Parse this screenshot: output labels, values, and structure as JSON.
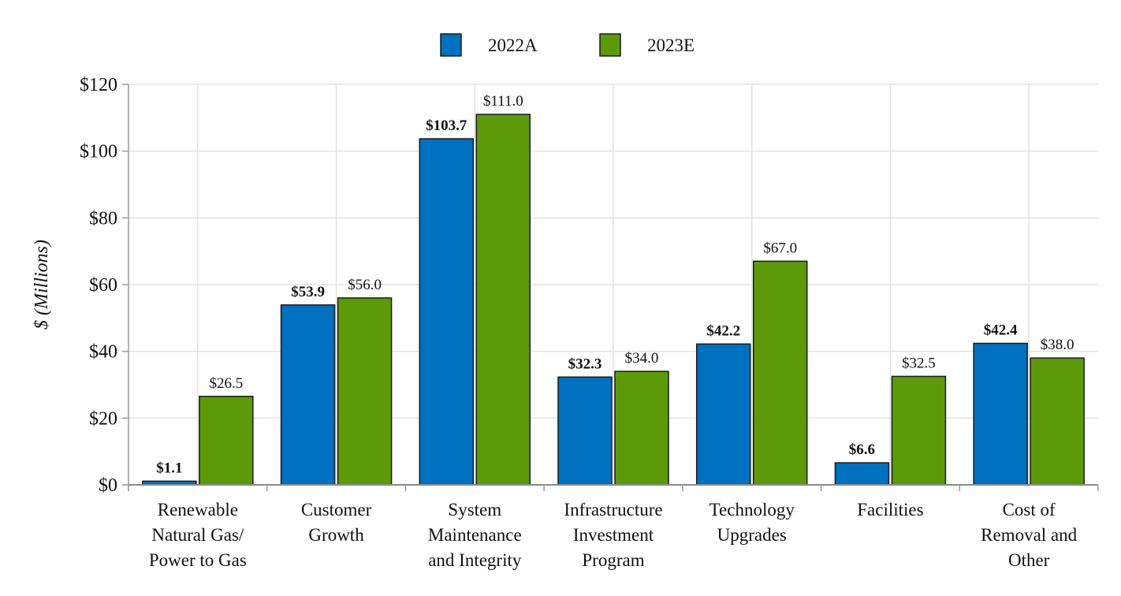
{
  "chart_data": {
    "type": "bar",
    "title": "",
    "xlabel": "",
    "ylabel": "$ (Millions)",
    "ylim": [
      0,
      120
    ],
    "yticks": [
      0,
      20,
      40,
      60,
      80,
      100,
      120
    ],
    "ytick_labels": [
      "$0",
      "$20",
      "$40",
      "$60",
      "$80",
      "$100",
      "$120"
    ],
    "grid": true,
    "legend_position": "top-center",
    "categories": [
      [
        "Renewable",
        "Natural Gas/",
        "Power to Gas"
      ],
      [
        "Customer",
        "Growth"
      ],
      [
        "System",
        "Maintenance",
        "and Integrity"
      ],
      [
        "Infrastructure",
        "Investment",
        "Program"
      ],
      [
        "Technology",
        "Upgrades"
      ],
      [
        "Facilities"
      ],
      [
        "Cost of",
        "Removal and",
        "Other"
      ]
    ],
    "series": [
      {
        "name": "2022A",
        "color": "#0070c0",
        "label_bold": true,
        "values": [
          1.1,
          53.9,
          103.7,
          32.3,
          42.2,
          6.6,
          42.4
        ],
        "labels": [
          "$1.1",
          "$53.9",
          "$103.7",
          "$32.3",
          "$42.2",
          "$6.6",
          "$42.4"
        ]
      },
      {
        "name": "2023E",
        "color": "#5c9a0a",
        "label_bold": false,
        "values": [
          26.5,
          56.0,
          111.0,
          34.0,
          67.0,
          32.5,
          38.0
        ],
        "labels": [
          "$26.5",
          "$56.0",
          "$111.0",
          "$34.0",
          "$67.0",
          "$32.5",
          "$38.0"
        ]
      }
    ]
  }
}
